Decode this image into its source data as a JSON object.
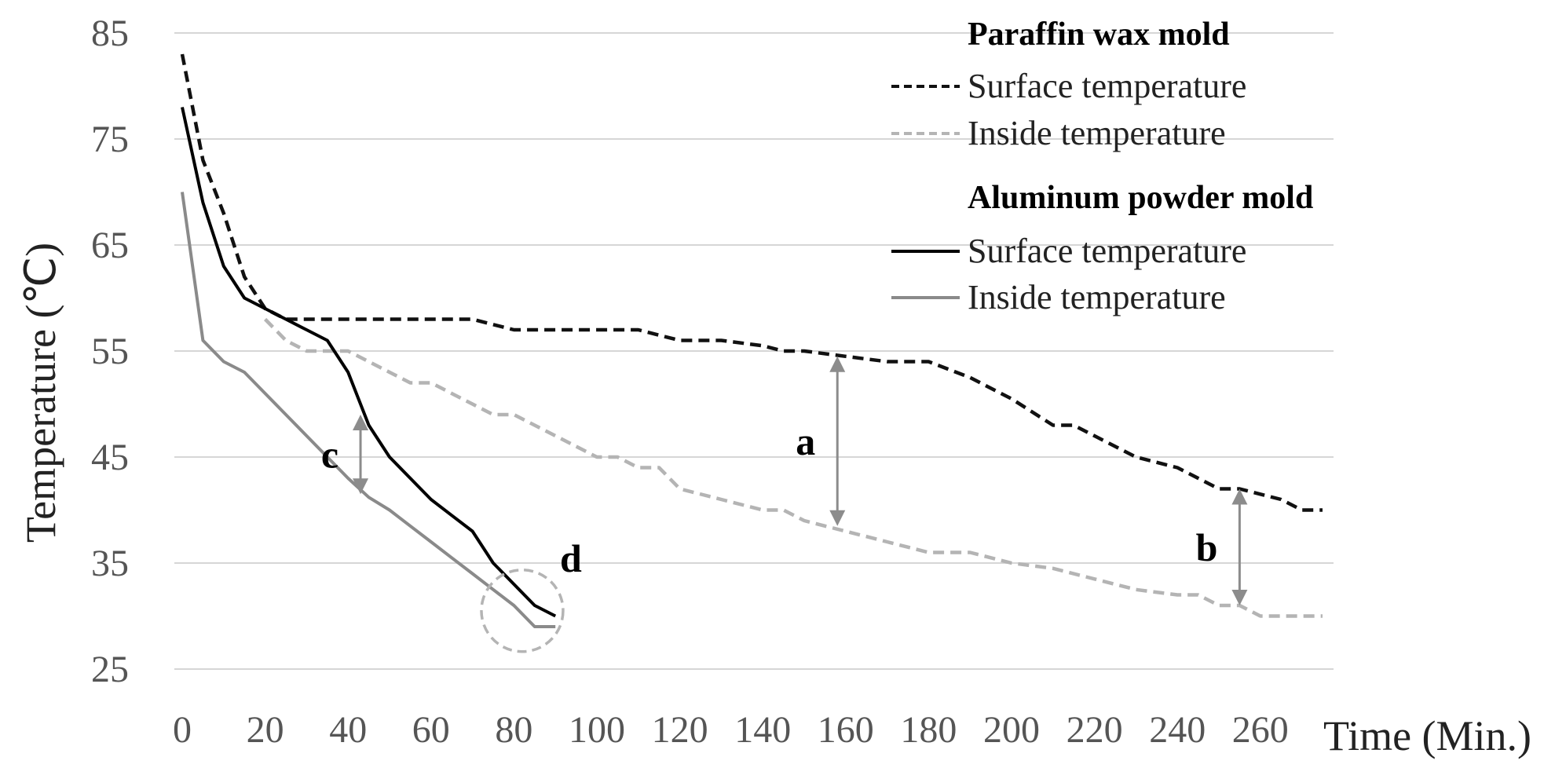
{
  "chart_data": {
    "type": "line",
    "title": "",
    "xlabel": "Time (Min.)",
    "ylabel": "Temperature (℃)",
    "xlim": [
      0,
      275
    ],
    "ylim": [
      25,
      85
    ],
    "xticks": [
      0,
      20,
      40,
      60,
      80,
      100,
      120,
      140,
      160,
      180,
      200,
      220,
      240,
      260
    ],
    "yticks": [
      25,
      35,
      45,
      55,
      65,
      75,
      85
    ],
    "grid": true,
    "legend_placement": "top-right",
    "legend_groups": [
      {
        "title": "Paraffin wax mold",
        "entries": [
          "Surface temperature",
          "Inside temperature"
        ]
      },
      {
        "title": "Aluminum powder mold",
        "entries": [
          "Surface temperature",
          "Inside temperature"
        ]
      }
    ],
    "series": [
      {
        "name": "Paraffin wax mold - Surface temperature",
        "color": "#111111",
        "dashed": true,
        "x": [
          0,
          5,
          10,
          15,
          20,
          25,
          30,
          40,
          50,
          60,
          70,
          75,
          80,
          90,
          100,
          110,
          115,
          120,
          130,
          140,
          145,
          150,
          160,
          170,
          180,
          190,
          200,
          210,
          215,
          220,
          230,
          240,
          245,
          250,
          255,
          260,
          265,
          270,
          275
        ],
        "y": [
          83,
          73,
          68,
          62,
          59,
          58,
          58,
          58,
          58,
          58,
          58,
          57.5,
          57,
          57,
          57,
          57,
          56.5,
          56,
          56,
          55.5,
          55,
          55,
          54.5,
          54,
          54,
          52.5,
          50.5,
          48,
          48,
          47,
          45,
          44,
          43,
          42,
          42,
          41.5,
          41,
          40,
          40
        ]
      },
      {
        "name": "Paraffin wax mold - Inside temperature",
        "color": "#b4b4b4",
        "dashed": true,
        "x": [
          20,
          25,
          30,
          35,
          40,
          45,
          50,
          55,
          60,
          70,
          75,
          80,
          85,
          90,
          95,
          100,
          105,
          110,
          115,
          120,
          130,
          140,
          145,
          150,
          155,
          160,
          170,
          180,
          190,
          200,
          210,
          220,
          230,
          240,
          245,
          250,
          255,
          260,
          265,
          270,
          275
        ],
        "y": [
          58,
          56,
          55,
          55,
          55,
          54,
          53,
          52,
          52,
          50,
          49,
          49,
          48,
          47,
          46,
          45,
          45,
          44,
          44,
          42,
          41,
          40,
          40,
          39,
          38.5,
          38,
          37,
          36,
          36,
          35,
          34.5,
          33.5,
          32.5,
          32,
          32,
          31,
          31,
          30,
          30,
          30,
          30
        ]
      },
      {
        "name": "Aluminum powder mold - Surface temperature",
        "color": "#000000",
        "dashed": false,
        "x": [
          0,
          5,
          10,
          15,
          20,
          25,
          30,
          35,
          40,
          45,
          50,
          55,
          60,
          65,
          70,
          75,
          80,
          85,
          90
        ],
        "y": [
          78,
          69,
          63,
          60,
          59,
          58,
          57,
          56,
          53,
          48,
          45,
          43,
          41,
          39.5,
          38,
          35,
          33,
          31,
          30
        ]
      },
      {
        "name": "Aluminum powder mold - Inside temperature",
        "color": "#8a8a8a",
        "dashed": false,
        "x": [
          0,
          5,
          10,
          15,
          20,
          25,
          30,
          35,
          40,
          45,
          50,
          55,
          60,
          65,
          70,
          75,
          80,
          85,
          90
        ],
        "y": [
          70,
          56,
          54,
          53,
          51,
          49,
          47,
          45,
          43,
          41.2,
          40,
          38.5,
          37,
          35.5,
          34,
          32.5,
          31,
          29,
          29
        ]
      }
    ],
    "annotations": [
      {
        "label": "a",
        "x": 158,
        "y_from": 54.5,
        "y_to": 38.5
      },
      {
        "label": "b",
        "x": 255,
        "y_from": 42,
        "y_to": 31
      },
      {
        "label": "c",
        "x": 43,
        "y_from": 49,
        "y_to": 41.5
      },
      {
        "label": "d",
        "x": 82,
        "y": 30.5,
        "kind": "circle"
      }
    ]
  }
}
